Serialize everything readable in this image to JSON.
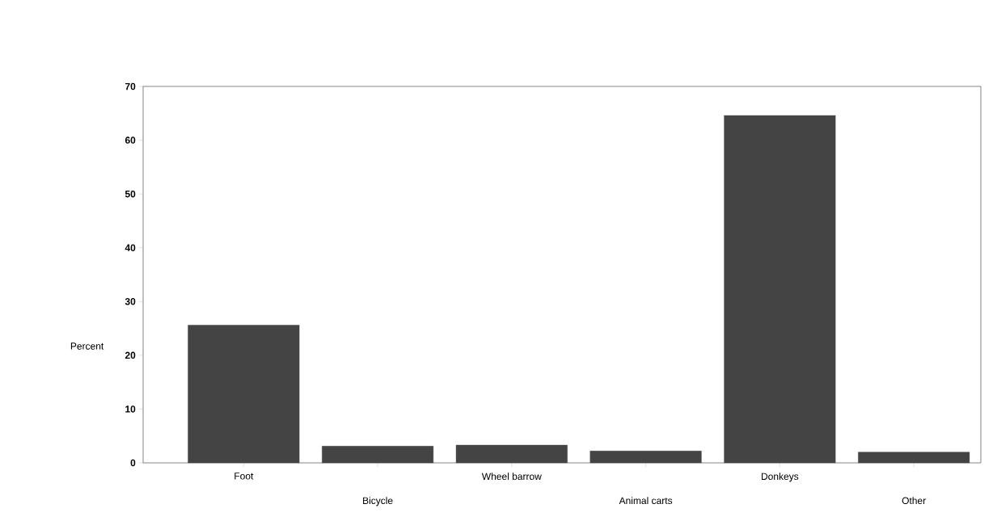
{
  "chart_data": {
    "type": "bar",
    "ylabel": "Percent",
    "categories": [
      "Foot",
      "Bicycle",
      "Wheel barrow",
      "Animal carts",
      "Donkeys",
      "Other"
    ],
    "values": [
      25.6,
      3.1,
      3.3,
      2.2,
      64.6,
      2.0
    ],
    "color": "#444444",
    "ylim": [
      0,
      70
    ],
    "yticks": [
      0,
      10,
      20,
      30,
      40,
      50,
      60,
      70
    ]
  }
}
